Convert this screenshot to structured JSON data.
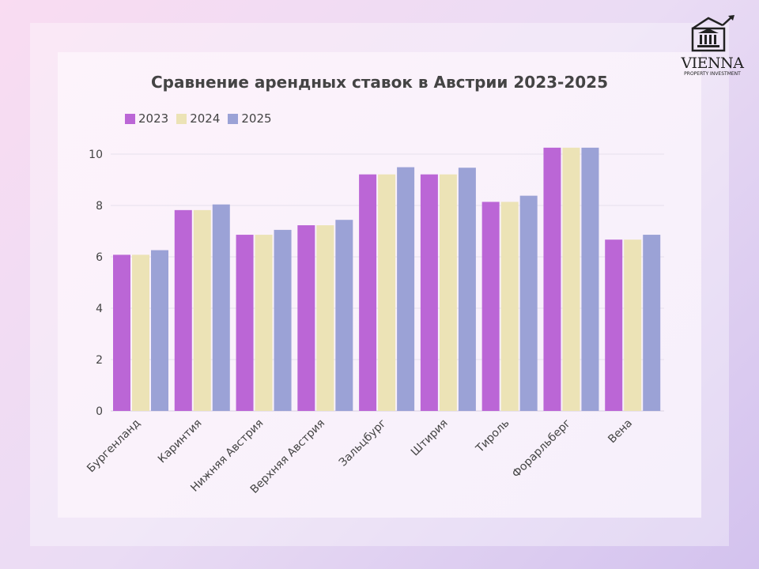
{
  "logo": {
    "name": "VIENNA",
    "subtitle": "PROPERTY INVESTMENT"
  },
  "chart_data": {
    "type": "bar",
    "title": "Сравнение арендных ставок в Австрии 2023-2025",
    "xlabel": "",
    "ylabel": "",
    "ylim": [
      0,
      10.5
    ],
    "yticks": [
      0,
      2,
      4,
      6,
      8,
      10
    ],
    "grid": true,
    "legend_position": "top-left",
    "categories": [
      "Бургенланд",
      "Каринтия",
      "Нижняя Австрия",
      "Верхняя Австрия",
      "Зальцбург",
      "Штирия",
      "Тироль",
      "Форарльберг",
      "Вена"
    ],
    "series": [
      {
        "name": "2023",
        "color": "#bb66d6",
        "values": [
          6.08,
          7.82,
          6.86,
          7.23,
          9.21,
          9.21,
          8.14,
          10.25,
          6.67
        ]
      },
      {
        "name": "2024",
        "color": "#ece3b6",
        "values": [
          6.08,
          7.82,
          6.86,
          7.23,
          9.21,
          9.21,
          8.14,
          10.25,
          6.67
        ]
      },
      {
        "name": "2025",
        "color": "#9ba2d6",
        "values": [
          6.26,
          8.04,
          7.05,
          7.44,
          9.49,
          9.47,
          8.38,
          10.25,
          6.86
        ]
      }
    ]
  }
}
